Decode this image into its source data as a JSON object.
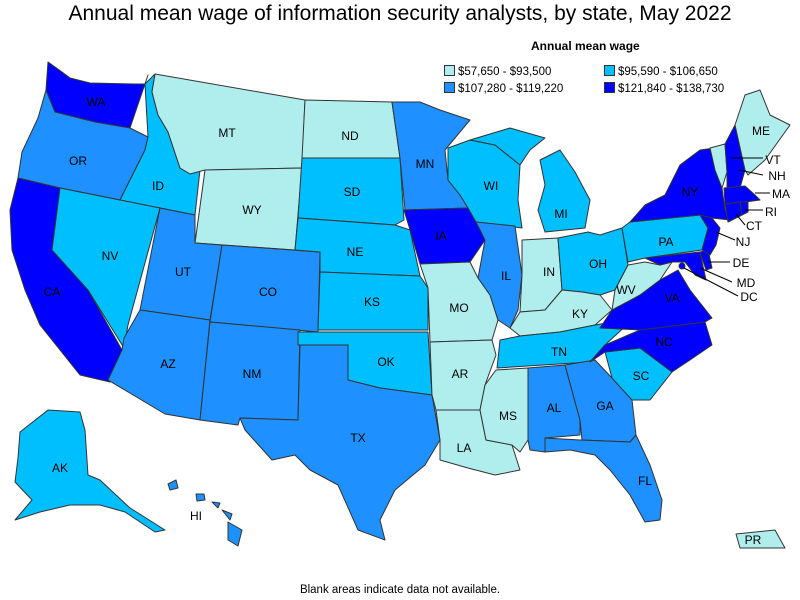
{
  "title": "Annual mean wage of information security analysts, by state, May 2022",
  "legend": {
    "title": "Annual mean wage",
    "items": [
      {
        "label": "$57,650 - $93,500",
        "color": "#b0eeee"
      },
      {
        "label": "$95,590 - $106,650",
        "color": "#00bfff"
      },
      {
        "label": "$107,280 - $119,220",
        "color": "#1e90ff"
      },
      {
        "label": "$121,840 - $138,730",
        "color": "#0000ff"
      }
    ]
  },
  "footnote": "Blank areas indicate data not available.",
  "states": {
    "WA": {
      "label": "WA",
      "bin": 3
    },
    "OR": {
      "label": "OR",
      "bin": 2
    },
    "CA": {
      "label": "CA",
      "bin": 3
    },
    "ID": {
      "label": "ID",
      "bin": 1
    },
    "NV": {
      "label": "NV",
      "bin": 1
    },
    "MT": {
      "label": "MT",
      "bin": 0
    },
    "WY": {
      "label": "WY",
      "bin": 0
    },
    "UT": {
      "label": "UT",
      "bin": 2
    },
    "AZ": {
      "label": "AZ",
      "bin": 2
    },
    "CO": {
      "label": "CO",
      "bin": 2
    },
    "NM": {
      "label": "NM",
      "bin": 2
    },
    "ND": {
      "label": "ND",
      "bin": 0
    },
    "SD": {
      "label": "SD",
      "bin": 1
    },
    "NE": {
      "label": "NE",
      "bin": 1
    },
    "KS": {
      "label": "KS",
      "bin": 1
    },
    "OK": {
      "label": "OK",
      "bin": 1
    },
    "TX": {
      "label": "TX",
      "bin": 2
    },
    "MN": {
      "label": "MN",
      "bin": 2
    },
    "IA": {
      "label": "IA",
      "bin": 3
    },
    "MO": {
      "label": "MO",
      "bin": 0
    },
    "AR": {
      "label": "AR",
      "bin": 0
    },
    "LA": {
      "label": "LA",
      "bin": 0
    },
    "WI": {
      "label": "WI",
      "bin": 1
    },
    "IL": {
      "label": "IL",
      "bin": 2
    },
    "MI": {
      "label": "MI",
      "bin": 1
    },
    "IN": {
      "label": "IN",
      "bin": 0
    },
    "OH": {
      "label": "OH",
      "bin": 1
    },
    "KY": {
      "label": "KY",
      "bin": 0
    },
    "TN": {
      "label": "TN",
      "bin": 1
    },
    "MS": {
      "label": "MS",
      "bin": 0
    },
    "AL": {
      "label": "AL",
      "bin": 2
    },
    "GA": {
      "label": "GA",
      "bin": 2
    },
    "FL": {
      "label": "FL",
      "bin": 2
    },
    "SC": {
      "label": "SC",
      "bin": 1
    },
    "NC": {
      "label": "NC",
      "bin": 3
    },
    "VA": {
      "label": "VA",
      "bin": 3
    },
    "WV": {
      "label": "WV",
      "bin": 0
    },
    "PA": {
      "label": "PA",
      "bin": 1
    },
    "NY": {
      "label": "NY",
      "bin": 3
    },
    "VT": {
      "label": "VT",
      "bin": 0
    },
    "NH": {
      "label": "NH",
      "bin": 3
    },
    "ME": {
      "label": "ME",
      "bin": 0
    },
    "MA": {
      "label": "MA",
      "bin": 3
    },
    "RI": {
      "label": "RI",
      "bin": 3
    },
    "CT": {
      "label": "CT",
      "bin": 3
    },
    "NJ": {
      "label": "NJ",
      "bin": 3
    },
    "DE": {
      "label": "DE",
      "bin": 3
    },
    "MD": {
      "label": "MD",
      "bin": 3
    },
    "DC": {
      "label": "DC",
      "bin": 3
    },
    "AK": {
      "label": "AK",
      "bin": 1
    },
    "HI": {
      "label": "HI",
      "bin": 2
    },
    "PR": {
      "label": "PR",
      "bin": 0
    }
  }
}
